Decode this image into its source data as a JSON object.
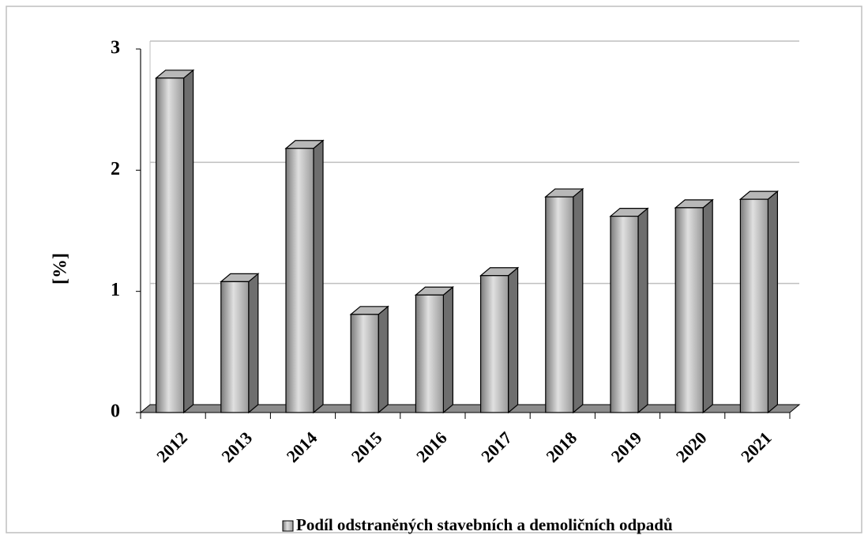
{
  "chart_data": {
    "type": "bar",
    "categories": [
      "2012",
      "2013",
      "2014",
      "2015",
      "2016",
      "2017",
      "2018",
      "2019",
      "2020",
      "2021"
    ],
    "series": [
      {
        "name": "Podíl odstraněných stavebních a demoličních odpadů",
        "color": "#a6a6a6",
        "values": [
          2.76,
          1.08,
          2.18,
          0.81,
          0.97,
          1.13,
          1.78,
          1.62,
          1.69,
          1.76
        ]
      }
    ],
    "ylabel": "[%]",
    "ylim": [
      0,
      3
    ],
    "yticks": [
      0,
      1,
      2,
      3
    ],
    "grid": true,
    "legend": "bottom"
  }
}
